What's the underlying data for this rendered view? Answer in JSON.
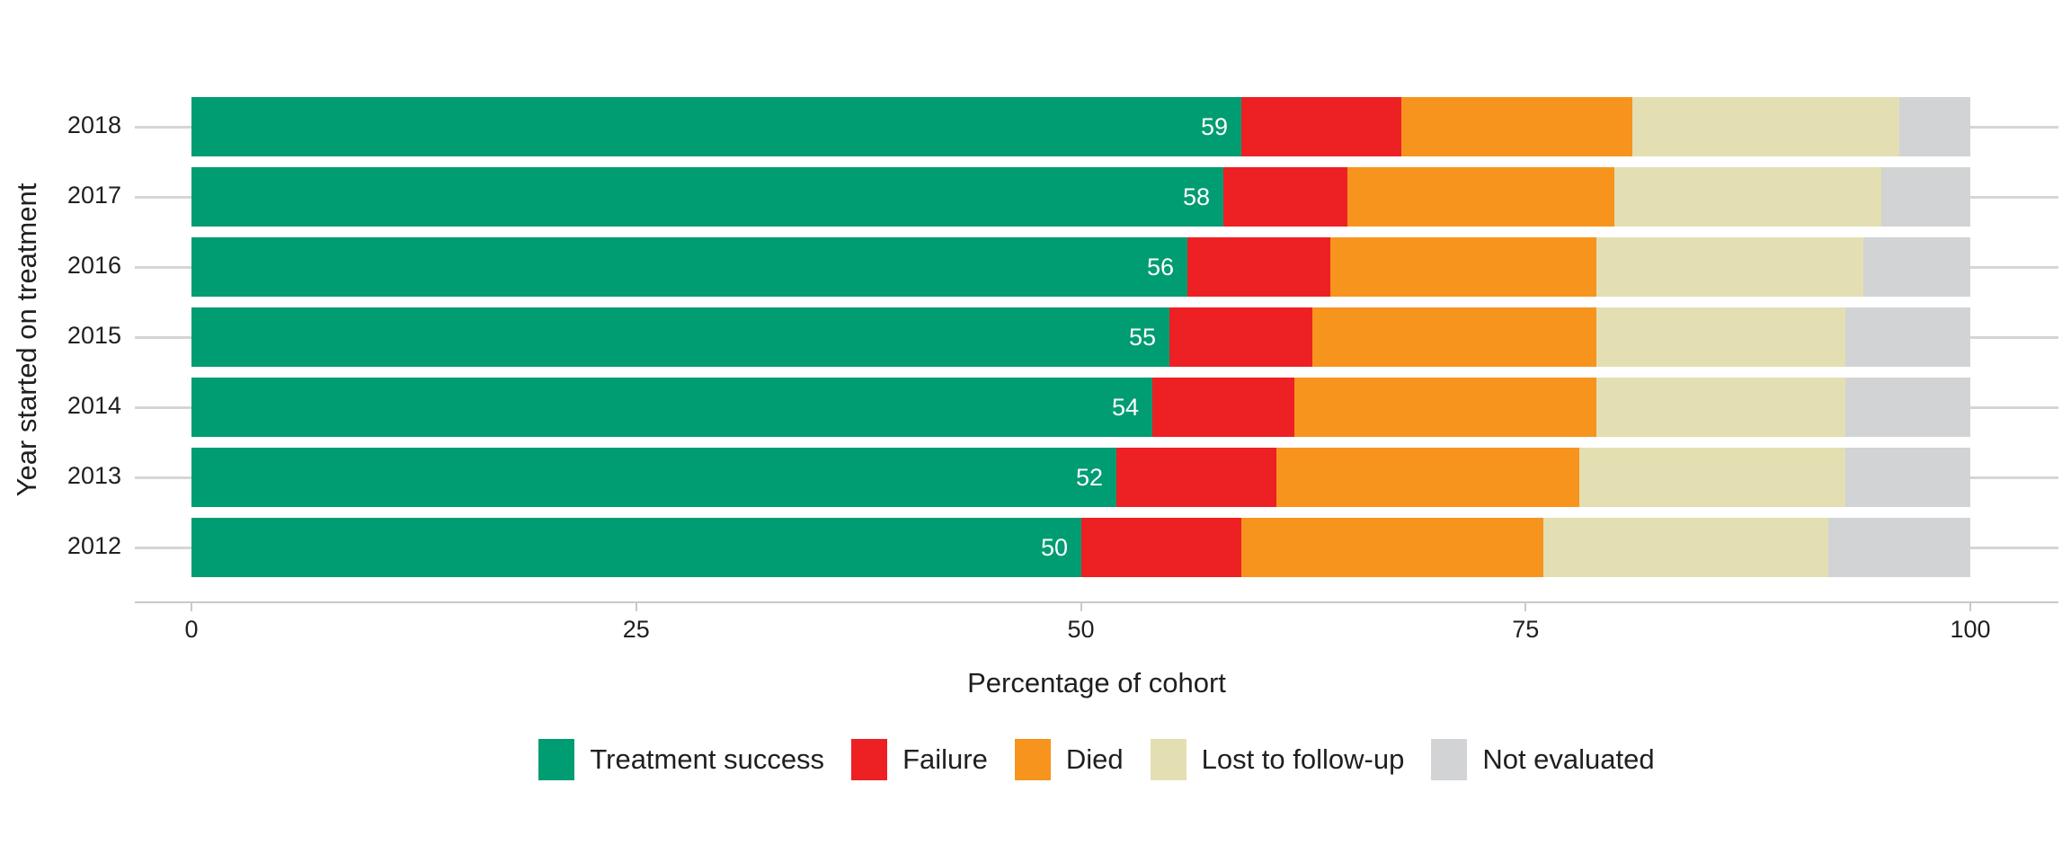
{
  "chart_data": {
    "type": "bar",
    "orientation": "horizontal",
    "stacked": true,
    "xlabel": "Percentage of cohort",
    "ylabel": "Year started on treatment",
    "xlim": [
      0,
      100
    ],
    "x_ticks": [
      "0",
      "25",
      "50",
      "75",
      "100"
    ],
    "grid": "horizontal-rows",
    "legend_position": "bottom",
    "categories": [
      "2018",
      "2017",
      "2016",
      "2015",
      "2014",
      "2013",
      "2012"
    ],
    "series": [
      {
        "name": "Treatment success",
        "color": "#009c72",
        "values": [
          59,
          58,
          56,
          55,
          54,
          52,
          50
        ]
      },
      {
        "name": "Failure",
        "color": "#ed2024",
        "values": [
          9,
          7,
          8,
          8,
          8,
          9,
          9
        ]
      },
      {
        "name": "Died",
        "color": "#f7941e",
        "values": [
          13,
          15,
          15,
          16,
          17,
          17,
          17
        ]
      },
      {
        "name": "Lost to follow-up",
        "color": "#e3dfb2",
        "values": [
          15,
          15,
          15,
          14,
          14,
          15,
          16
        ]
      },
      {
        "name": "Not evaluated",
        "color": "#d2d3d4",
        "values": [
          4,
          5,
          6,
          7,
          7,
          7,
          8
        ]
      }
    ],
    "bar_labels": {
      "series": "Treatment success",
      "values": [
        "59",
        "58",
        "56",
        "55",
        "54",
        "52",
        "50"
      ],
      "color": "#ffffff"
    }
  }
}
